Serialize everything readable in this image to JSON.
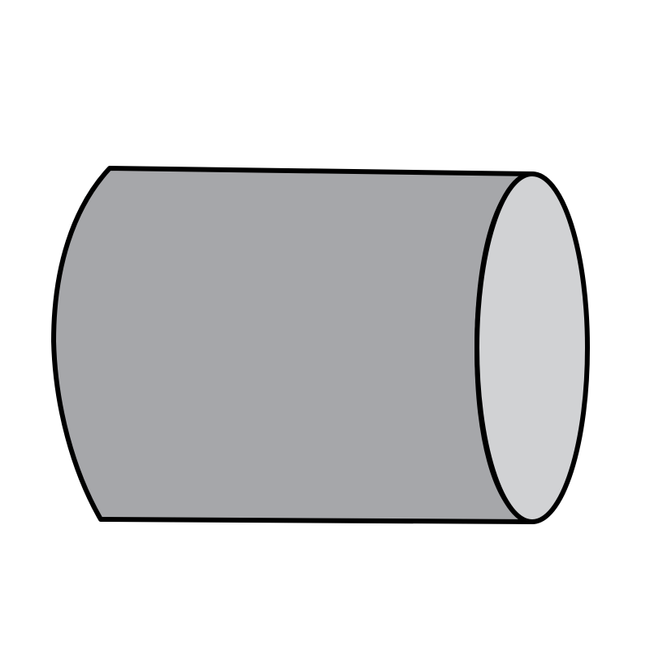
{
  "figure": {
    "subject": "cylinder",
    "colors": {
      "background": "#ffffff",
      "body_fill": "#a6a7aa",
      "end_cap_fill": "#d1d2d4",
      "outline": "#000000"
    }
  }
}
